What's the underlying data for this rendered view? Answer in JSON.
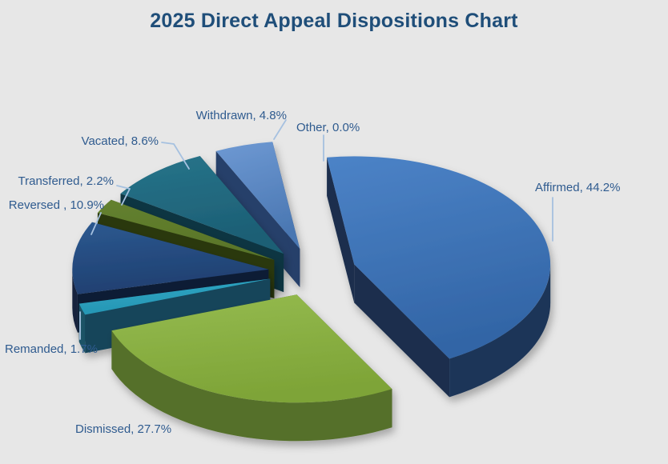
{
  "title": {
    "text": "2025 Direct Appeal Dispositions Chart"
  },
  "colors": {
    "background": "#E7E7E7",
    "title": "#1F4E79",
    "label": "#2F5B8F",
    "leader_line": "#A6C1E0"
  },
  "chart_data": {
    "type": "pie",
    "title": "2025 Direct Appeal Dispositions Chart",
    "unit": "percent",
    "effect": "3d-exploded",
    "clockwise": true,
    "start_angle_deg": -8,
    "legend_position": "none",
    "labels_position": "outside-callout",
    "categories": [
      "Affirmed",
      "Dismissed",
      "Remanded",
      "Reversed",
      "Transferred",
      "Vacated",
      "Withdrawn",
      "Other"
    ],
    "values": [
      44.2,
      27.7,
      1.7,
      10.9,
      2.2,
      8.6,
      4.8,
      0.0
    ],
    "slices": [
      {
        "name": "Affirmed",
        "value": 44.2,
        "label": "Affirmed, 44.2%",
        "color_top": "#4C83C7",
        "color_top2": "#3265A6",
        "color_side": "#1D3558",
        "color_cut": "#1A2F4E"
      },
      {
        "name": "Dismissed",
        "value": 27.7,
        "label": "Dismissed, 27.7%",
        "color_top": "#95BB4F",
        "color_top2": "#7EA437",
        "color_side": "#55702A",
        "color_cut": "#4A6124"
      },
      {
        "name": "Remanded",
        "value": 1.7,
        "label": "Remanded, 1.7%",
        "color_top": "#2FA6C4",
        "color_top2": "#2696B4",
        "color_side": "#1C5366",
        "color_cut": "#16455A"
      },
      {
        "name": "Reversed",
        "value": 10.9,
        "label": "Reversed , 10.9%",
        "color_top": "#2C5990",
        "color_top2": "#1F3F70",
        "color_side": "#13223E",
        "color_cut": "#101D36"
      },
      {
        "name": "Transferred",
        "value": 2.2,
        "label": "Transferred, 2.2%",
        "color_top": "#64812E",
        "color_top2": "#59752A",
        "color_side": "#31410F",
        "color_cut": "#2A390C"
      },
      {
        "name": "Vacated",
        "value": 8.6,
        "label": "Vacated, 8.6%",
        "color_top": "#27748A",
        "color_top2": "#1C5E74",
        "color_side": "#123E4E",
        "color_cut": "#0F3542"
      },
      {
        "name": "Withdrawn",
        "value": 4.8,
        "label": "Withdrawn, 4.8%",
        "color_top": "#6E99D3",
        "color_top2": "#4A77B2",
        "color_side": "#2D4D7D",
        "color_cut": "#263F6B"
      },
      {
        "name": "Other",
        "value": 0.0,
        "label": "Other, 0.0%"
      }
    ]
  }
}
